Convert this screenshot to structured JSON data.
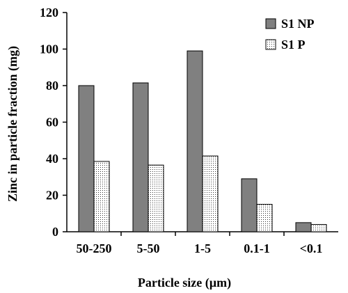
{
  "chart_data": {
    "type": "bar",
    "categories": [
      "50-250",
      "5-50",
      "1-5",
      "0.1-1",
      "<0.1"
    ],
    "series": [
      {
        "name": "S1 NP",
        "values": [
          80,
          81.5,
          99,
          29,
          5
        ],
        "color": "#808080",
        "pattern": "solid"
      },
      {
        "name": "S1 P",
        "values": [
          38.5,
          36.5,
          41.5,
          15,
          4
        ],
        "color": "#ffffff",
        "pattern": "dotted"
      }
    ],
    "xlabel": "Particle size (µm)",
    "ylabel": "Zinc  in particle fraction (mg)",
    "ylim": [
      0,
      120
    ],
    "yticks": [
      0,
      20,
      40,
      60,
      80,
      100,
      120
    ],
    "grid": false,
    "legend_position": "top-right"
  }
}
